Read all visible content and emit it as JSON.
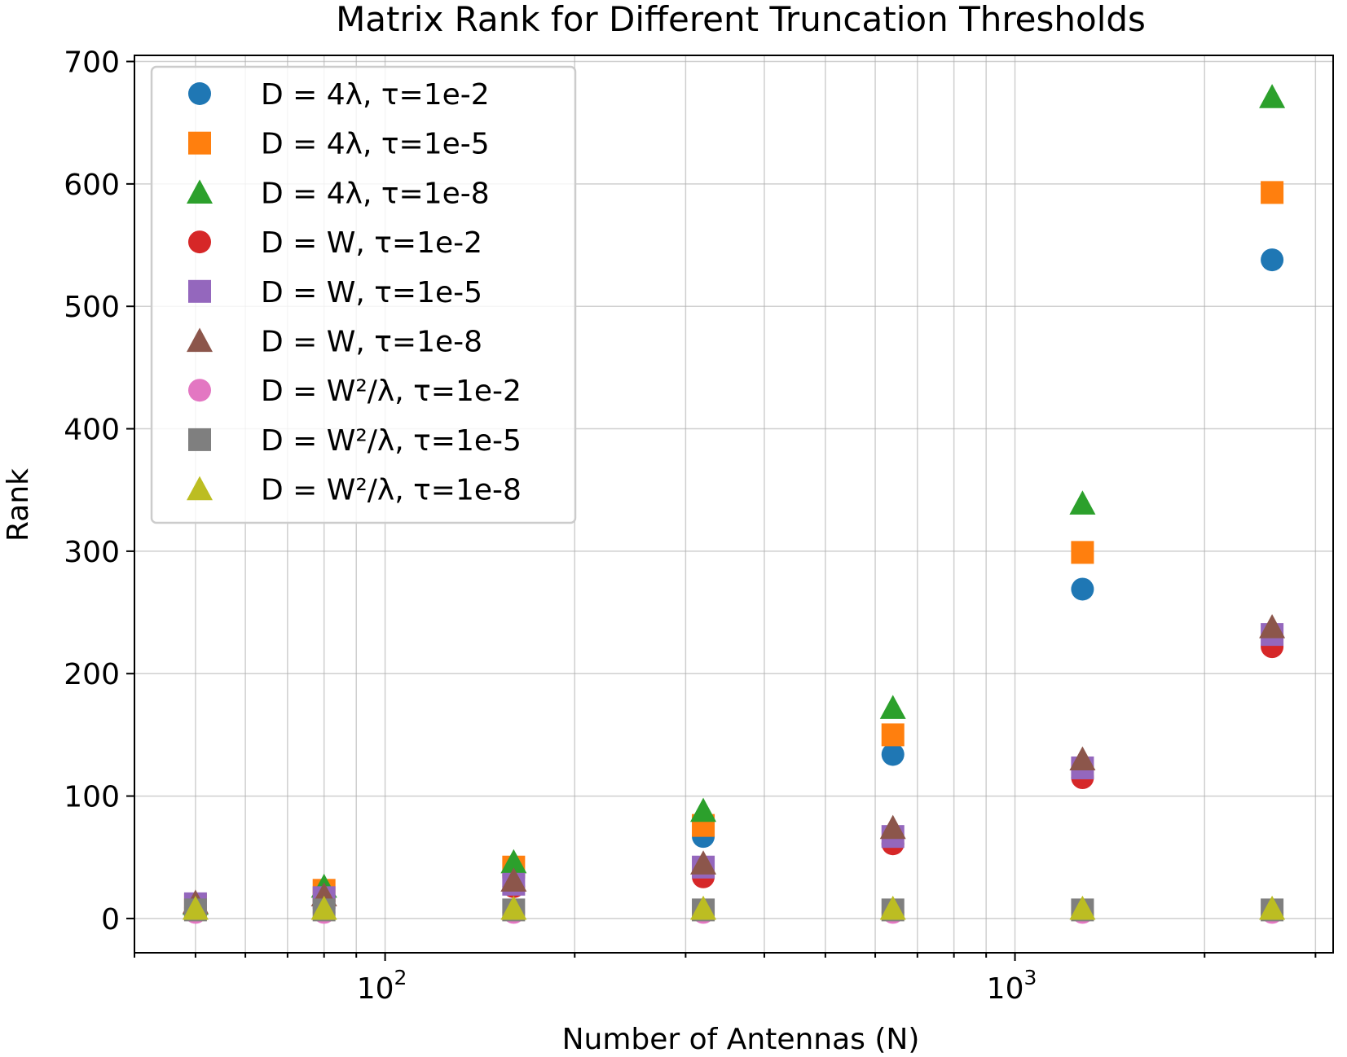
{
  "chart_data": {
    "type": "scatter",
    "title": "Matrix Rank for Different Truncation Thresholds",
    "xlabel": "Number of Antennas (N)",
    "ylabel": "Rank",
    "xscale": "log",
    "xlim": [
      40,
      3200
    ],
    "ylim": [
      -28,
      705
    ],
    "x_major_ticks": [
      {
        "value": 100,
        "base": "10",
        "exp": "2"
      },
      {
        "value": 1000,
        "base": "10",
        "exp": "3"
      }
    ],
    "y_ticks": [
      0,
      100,
      200,
      300,
      400,
      500,
      600,
      700
    ],
    "y_tick_labels": [
      "0",
      "100",
      "200",
      "300",
      "400",
      "500",
      "600",
      "700"
    ],
    "grid": "both (major and minor)",
    "legend_location": "upper-left",
    "x": [
      50,
      80,
      160,
      320,
      640,
      1280,
      2560
    ],
    "series": [
      {
        "name": "D = 4λ, τ=1e-2",
        "color": "#1f77b4",
        "marker": "circle",
        "values": [
          8,
          17,
          35,
          67,
          134,
          269,
          538
        ]
      },
      {
        "name": "D = 4λ, τ=1e-5",
        "color": "#ff7f0e",
        "marker": "square",
        "values": [
          11,
          23,
          42,
          76,
          150,
          299,
          593
        ]
      },
      {
        "name": "D = 4λ, τ=1e-8",
        "color": "#2ca02c",
        "marker": "triangle",
        "values": [
          12,
          26,
          46,
          88,
          172,
          339,
          671
        ]
      },
      {
        "name": "D = W, τ=1e-2",
        "color": "#d62728",
        "marker": "circle",
        "values": [
          9,
          14,
          26,
          34,
          61,
          115,
          222
        ]
      },
      {
        "name": "D = W, τ=1e-5",
        "color": "#9467bd",
        "marker": "square",
        "values": [
          12,
          17,
          28,
          42,
          67,
          123,
          232
        ]
      },
      {
        "name": "D = W, τ=1e-8",
        "color": "#8c564b",
        "marker": "triangle",
        "values": [
          13,
          19,
          31,
          45,
          74,
          130,
          238
        ]
      },
      {
        "name": "D = W²/λ, τ=1e-2",
        "color": "#e377c2",
        "marker": "circle",
        "values": [
          5,
          5,
          5,
          5,
          5,
          5,
          5
        ]
      },
      {
        "name": "D = W²/λ, τ=1e-5",
        "color": "#7f7f7f",
        "marker": "square",
        "values": [
          7,
          7,
          7,
          7,
          7,
          7,
          7
        ]
      },
      {
        "name": "D = W²/λ, τ=1e-8",
        "color": "#bcbd22",
        "marker": "triangle",
        "values": [
          8,
          8,
          8,
          8,
          8,
          8,
          8
        ]
      }
    ]
  }
}
